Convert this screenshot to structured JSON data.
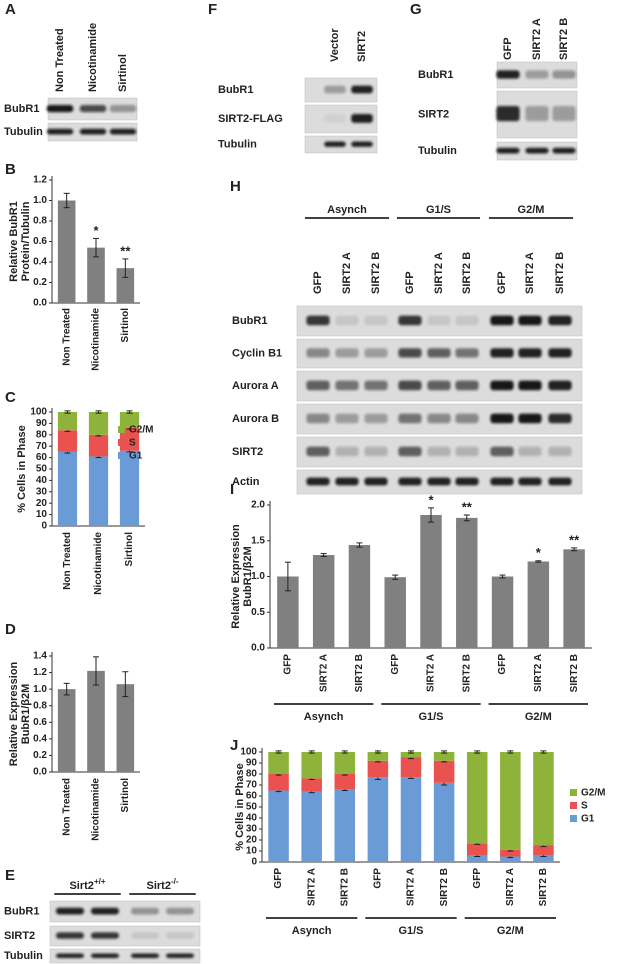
{
  "blots": [
    {
      "panel": "A",
      "columns": [
        "Non Treated",
        "Nicotinamide",
        "Sirtinol"
      ],
      "rows": [
        "BubR1",
        "Tubulin"
      ]
    },
    {
      "panel": "F",
      "columns": [
        "Vector",
        "SIRT2"
      ],
      "rows": [
        "BubR1",
        "SIRT2-FLAG",
        "Tubulin"
      ]
    },
    {
      "panel": "G",
      "columns": [
        "GFP",
        "SIRT2 A",
        "SIRT2 B"
      ],
      "rows": [
        "BubR1",
        "SIRT2",
        "Tubulin"
      ]
    },
    {
      "panel": "H",
      "groups": [
        {
          "name": "Asynch"
        },
        {
          "name": "G1/S"
        },
        {
          "name": "G2/M"
        }
      ],
      "columns": [
        "GFP",
        "SIRT2 A",
        "SIRT2 B",
        "GFP",
        "SIRT2 A",
        "SIRT2 B",
        "GFP",
        "SIRT2 A",
        "SIRT2 B"
      ],
      "rows": [
        "BubR1",
        "Cyclin B1",
        "Aurora A",
        "Aurora B",
        "SIRT2",
        "Actin"
      ]
    },
    {
      "panel": "E",
      "groups": [
        {
          "name": "Sirt2",
          "sup": "+/+"
        },
        {
          "name": "Sirt2",
          "sup": "-/-"
        }
      ],
      "rows": [
        "BubR1",
        "SIRT2",
        "Tubulin"
      ]
    }
  ],
  "chart_data": [
    {
      "panel": "B",
      "type": "bar",
      "ylabel": [
        "Relative BubR1",
        "Protein/Tubulin"
      ],
      "categories": [
        "Non Treated",
        "Nicotinamide",
        "Sirtinol"
      ],
      "values": [
        1.0,
        0.54,
        0.34
      ],
      "errors": [
        0.07,
        0.09,
        0.09
      ],
      "significance": [
        null,
        "*",
        "**"
      ],
      "color": "#808080",
      "ylim": [
        0,
        1.2
      ],
      "yticks": [
        {
          "value": 0,
          "label": "0.0"
        },
        0.2,
        0.4,
        0.6,
        0.8,
        {
          "value": 1,
          "label": "1.0"
        },
        1.2
      ]
    },
    {
      "panel": "C",
      "type": "stacked_bar",
      "ylabel": [
        "% Cells in Phase"
      ],
      "categories": [
        "Non Treated",
        "Nicotinamide",
        "Sirtinol"
      ],
      "series": [
        {
          "name": "G1",
          "color": "#6b9bd6",
          "values": [
            65,
            61,
            66
          ],
          "errors": [
            1,
            1,
            1
          ]
        },
        {
          "name": "S",
          "color": "#e9524f",
          "values": [
            19,
            19,
            20
          ],
          "errors": [
            1,
            1,
            1
          ]
        },
        {
          "name": "G2/M",
          "color": "#8db33b",
          "values": [
            16,
            20,
            14
          ],
          "errors": [
            1,
            1,
            1
          ]
        }
      ],
      "ylim": [
        0,
        100
      ],
      "yticks": [
        0,
        10,
        20,
        30,
        40,
        50,
        60,
        70,
        80,
        90,
        100
      ]
    },
    {
      "panel": "D",
      "type": "bar",
      "ylabel": [
        "Relative Expression",
        "BubR1/β2M"
      ],
      "categories": [
        "Non Treated",
        "Nicotinamide",
        "Sirtinol"
      ],
      "values": [
        1.0,
        1.22,
        1.06
      ],
      "errors": [
        0.07,
        0.17,
        0.15
      ],
      "color": "#808080",
      "ylim": [
        0,
        1.4
      ],
      "yticks": [
        {
          "value": 0,
          "label": "0.0"
        },
        0.2,
        0.4,
        0.6,
        0.8,
        {
          "value": 1,
          "label": "1.0"
        },
        1.2,
        1.4
      ]
    },
    {
      "panel": "I",
      "type": "bar",
      "ylabel": [
        "Relative Expression",
        "BubR1/β2M"
      ],
      "categories": [
        "GFP",
        "SIRT2 A",
        "SIRT2 B",
        "GFP",
        "SIRT2 A",
        "SIRT2 B",
        "GFP",
        "SIRT2 A",
        "SIRT2 B"
      ],
      "groups": [
        "Asynch",
        "G1/S",
        "G2/M"
      ],
      "values": [
        1.0,
        1.3,
        1.44,
        0.99,
        1.86,
        1.82,
        1.0,
        1.21,
        1.38
      ],
      "errors": [
        0.2,
        0.02,
        0.03,
        0.03,
        0.1,
        0.04,
        0.02,
        0.01,
        0.02
      ],
      "significance": [
        null,
        null,
        null,
        null,
        "*",
        "**",
        null,
        "*",
        "**"
      ],
      "color": "#808080",
      "ylim": [
        0,
        2
      ],
      "yticks": [
        {
          "value": 0,
          "label": "0.0"
        },
        0.5,
        {
          "value": 1,
          "label": "1.0"
        },
        1.5,
        {
          "value": 2,
          "label": "2.0"
        }
      ]
    },
    {
      "panel": "J",
      "type": "stacked_bar",
      "ylabel": [
        "% Cells in Phase"
      ],
      "categories": [
        "GFP",
        "SIRT2 A",
        "SIRT2 B",
        "GFP",
        "SIRT2 A",
        "SIRT2 B",
        "GFP",
        "SIRT2 A",
        "SIRT2 B"
      ],
      "groups": [
        "Asynch",
        "G1/S",
        "G2/M"
      ],
      "series": [
        {
          "name": "G1",
          "color": "#6b9bd6",
          "values": [
            65,
            64,
            66,
            77,
            77,
            72,
            6,
            5,
            6
          ],
          "errors": [
            1,
            1,
            1,
            2,
            1,
            2,
            1,
            1,
            1
          ]
        },
        {
          "name": "S",
          "color": "#e9524f",
          "values": [
            15,
            12,
            14,
            15,
            18,
            20,
            11,
            6,
            9
          ],
          "errors": [
            1,
            1,
            1,
            1,
            1,
            1,
            1,
            1,
            1
          ]
        },
        {
          "name": "G2/M",
          "color": "#8db33b",
          "values": [
            20,
            24,
            20,
            8,
            5,
            8,
            83,
            89,
            85
          ],
          "errors": [
            1,
            1,
            1,
            1,
            1,
            1,
            1,
            1,
            1
          ]
        }
      ],
      "ylim": [
        0,
        100
      ],
      "yticks": [
        0,
        10,
        20,
        30,
        40,
        50,
        60,
        70,
        80,
        90,
        100
      ]
    }
  ]
}
